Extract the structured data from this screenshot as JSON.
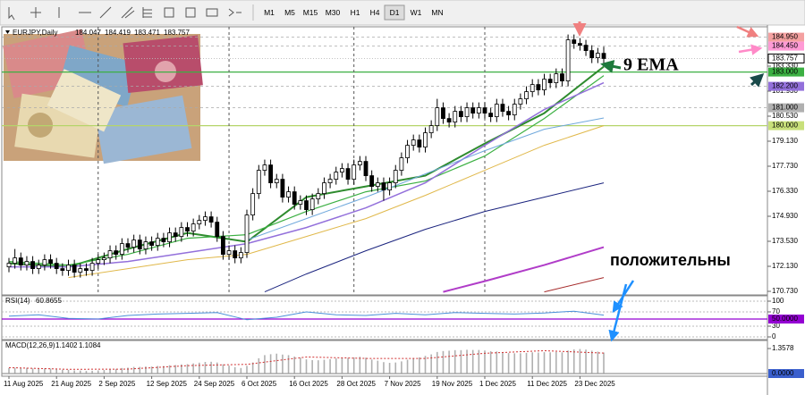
{
  "toolbar": {
    "timeframes": [
      "M1",
      "M5",
      "M15",
      "M30",
      "H1",
      "H4",
      "D1",
      "W1",
      "MN"
    ],
    "active": 6
  },
  "chart_data": [
    {
      "type": "candlestick",
      "title": "EURJPY,Daily",
      "categories": [
        "11 Aug 2025",
        null,
        null,
        null,
        null,
        null,
        null,
        null,
        "21 Aug 2025",
        null,
        null,
        null,
        null,
        null,
        null,
        null,
        "2 Sep 2025",
        null,
        null,
        null,
        null,
        null,
        null,
        null,
        "12 Sep 2025",
        null,
        null,
        null,
        null,
        null,
        null,
        null,
        "24 Sep 2025",
        null,
        null,
        null,
        null,
        null,
        null,
        null,
        "6 Oct 2025",
        null,
        null,
        null,
        null,
        null,
        null,
        null,
        "16 Oct 2025",
        null,
        null,
        null,
        null,
        null,
        null,
        null,
        "28 Oct 2025",
        null,
        null,
        null,
        null,
        null,
        null,
        null,
        "7 Nov 2025",
        null,
        null,
        null,
        null,
        null,
        null,
        null,
        "19 Nov 2025",
        null,
        null,
        null,
        null,
        null,
        null,
        null,
        "1 Dec 2025",
        null,
        null,
        null,
        null,
        null,
        null,
        null,
        "11 Dec 2025",
        null,
        null,
        null,
        null,
        null,
        null,
        null,
        "23 Dec 2025",
        null,
        null,
        null,
        null
      ],
      "open": [
        172.1,
        172.3,
        172.6,
        172.2,
        172.4,
        172.0,
        172.2,
        172.5,
        172.3,
        172.0,
        171.9,
        172.2,
        171.8,
        172.0,
        171.9,
        172.3,
        172.5,
        172.6,
        173.0,
        172.8,
        173.4,
        173.2,
        173.6,
        173.1,
        173.5,
        173.3,
        173.7,
        173.5,
        174.0,
        173.8,
        174.3,
        174.1,
        174.5,
        174.7,
        174.9,
        174.6,
        173.8,
        172.8,
        173.0,
        172.6,
        172.9,
        175.0,
        176.2,
        177.5,
        177.8,
        176.8,
        177.0,
        176.0,
        176.3,
        175.6,
        175.8,
        175.3,
        175.9,
        176.2,
        176.8,
        177.0,
        177.4,
        177.6,
        177.0,
        177.8,
        178.0,
        177.2,
        176.6,
        176.8,
        176.4,
        176.8,
        177.5,
        178.2,
        178.9,
        179.2,
        178.8,
        179.6,
        180.0,
        181.0,
        180.4,
        180.2,
        180.8,
        180.5,
        181.0,
        180.7,
        181.0,
        180.7,
        180.5,
        181.2,
        180.8,
        180.6,
        181.2,
        181.5,
        181.9,
        182.3,
        182.0,
        182.6,
        182.4,
        182.9,
        182.5,
        184.8,
        184.6,
        184.5,
        184.2,
        183.8,
        184.047
      ],
      "high": [
        172.6,
        173.1,
        172.9,
        172.7,
        172.7,
        172.5,
        172.8,
        172.8,
        172.6,
        172.3,
        172.5,
        172.5,
        172.3,
        172.3,
        172.6,
        172.8,
        172.9,
        173.3,
        173.3,
        173.7,
        173.7,
        173.9,
        173.9,
        173.8,
        173.8,
        174.0,
        174.0,
        174.3,
        174.3,
        174.6,
        174.6,
        174.8,
        175.0,
        175.2,
        175.2,
        174.9,
        174.1,
        173.3,
        173.3,
        173.2,
        175.3,
        176.5,
        177.8,
        178.1,
        178.1,
        177.3,
        177.3,
        176.6,
        176.6,
        176.1,
        176.1,
        176.2,
        176.5,
        177.1,
        177.3,
        177.7,
        177.9,
        177.9,
        178.1,
        178.3,
        178.3,
        177.5,
        177.1,
        177.1,
        177.1,
        177.8,
        178.5,
        179.2,
        179.5,
        179.5,
        179.9,
        180.3,
        181.5,
        181.3,
        180.7,
        181.1,
        181.1,
        181.3,
        181.3,
        181.3,
        181.3,
        181.0,
        181.5,
        181.5,
        181.1,
        181.5,
        181.8,
        182.2,
        182.6,
        182.6,
        182.9,
        182.9,
        183.2,
        183.2,
        185.1,
        185.1,
        184.9,
        184.8,
        184.5,
        184.35,
        184.419
      ],
      "low": [
        171.8,
        172.0,
        171.9,
        171.9,
        171.7,
        171.7,
        171.9,
        172.0,
        171.7,
        171.6,
        171.6,
        171.5,
        171.5,
        171.6,
        171.6,
        172.0,
        172.2,
        172.3,
        172.5,
        172.5,
        172.9,
        172.9,
        172.8,
        172.8,
        173.0,
        173.0,
        173.2,
        173.2,
        173.5,
        173.5,
        173.8,
        173.8,
        174.2,
        174.4,
        174.3,
        173.5,
        172.5,
        172.5,
        172.3,
        172.3,
        172.6,
        174.7,
        175.9,
        177.2,
        176.5,
        176.5,
        175.7,
        175.7,
        175.3,
        175.3,
        175.0,
        175.0,
        175.6,
        175.9,
        176.5,
        176.7,
        177.1,
        176.7,
        176.7,
        177.5,
        176.9,
        176.3,
        176.3,
        175.8,
        176.1,
        176.5,
        177.2,
        177.9,
        178.6,
        178.5,
        178.5,
        179.3,
        179.7,
        180.1,
        179.9,
        179.9,
        180.2,
        180.2,
        180.4,
        180.4,
        180.4,
        180.2,
        180.2,
        180.5,
        180.3,
        180.3,
        180.9,
        181.2,
        181.6,
        181.7,
        181.7,
        182.1,
        182.1,
        182.2,
        182.2,
        184.3,
        184.2,
        183.9,
        183.5,
        183.5,
        183.471
      ],
      "close": [
        172.3,
        172.6,
        172.2,
        172.4,
        172.0,
        172.2,
        172.5,
        172.3,
        172.0,
        171.9,
        172.2,
        171.8,
        172.0,
        171.9,
        172.3,
        172.5,
        172.6,
        173.0,
        172.8,
        173.4,
        173.2,
        173.6,
        173.1,
        173.5,
        173.3,
        173.7,
        173.5,
        174.0,
        173.8,
        174.3,
        174.1,
        174.5,
        174.7,
        174.9,
        174.6,
        173.8,
        172.8,
        173.0,
        172.6,
        172.9,
        175.0,
        176.2,
        177.5,
        177.8,
        176.8,
        177.0,
        176.0,
        176.3,
        175.6,
        175.8,
        175.3,
        175.9,
        176.2,
        176.8,
        177.0,
        177.4,
        177.6,
        177.0,
        177.8,
        178.0,
        177.2,
        176.6,
        176.8,
        176.4,
        176.8,
        177.5,
        178.2,
        178.9,
        179.2,
        178.8,
        179.6,
        180.0,
        181.0,
        180.4,
        180.2,
        180.8,
        180.5,
        181.0,
        180.7,
        181.0,
        180.7,
        180.5,
        181.2,
        180.8,
        180.6,
        181.2,
        181.5,
        181.9,
        182.3,
        182.0,
        182.6,
        182.4,
        182.9,
        182.5,
        184.8,
        184.6,
        184.5,
        184.2,
        183.8,
        184.05,
        183.757
      ],
      "up_color": "#ffffff",
      "down_color": "#000000",
      "overlays": [
        {
          "color": "#2e8b2e",
          "width": 2,
          "x": [
            0,
            10,
            20,
            30,
            40,
            50,
            60,
            70,
            80,
            90,
            100
          ],
          "values": [
            172.3,
            172.1,
            173.1,
            174.0,
            173.5,
            176.0,
            176.6,
            177.2,
            179.0,
            180.7,
            183.3
          ]
        },
        {
          "color": "#3cb043",
          "width": 1.2,
          "x": [
            0,
            10,
            20,
            30,
            40,
            50,
            60,
            70,
            80,
            90,
            100
          ],
          "values": [
            172.4,
            172.2,
            172.8,
            173.7,
            173.9,
            175.2,
            176.3,
            176.9,
            178.3,
            180.4,
            182.8
          ]
        },
        {
          "color": "#9370db",
          "width": 1.5,
          "x": [
            0,
            10,
            20,
            30,
            40,
            50,
            60,
            70,
            80,
            90,
            100
          ],
          "values": [
            172.1,
            172.1,
            172.4,
            172.9,
            173.4,
            174.3,
            175.4,
            176.8,
            178.9,
            180.9,
            182.4
          ]
        },
        {
          "color": "#6fa8dc",
          "width": 1,
          "x": [
            40,
            50,
            60,
            70,
            80,
            90,
            100
          ],
          "values": [
            173.6,
            174.8,
            176.0,
            177.3,
            178.6,
            179.8,
            180.43
          ]
        },
        {
          "color": "#e0b84a",
          "width": 1,
          "x": [
            10,
            20,
            30,
            40,
            50,
            60,
            70,
            80,
            90,
            100
          ],
          "values": [
            171.5,
            172.0,
            172.5,
            172.8,
            173.8,
            174.8,
            176.1,
            177.5,
            178.9,
            180.0
          ]
        },
        {
          "color": "#1a237e",
          "width": 1,
          "x": [
            43,
            50,
            60,
            70,
            80,
            90,
            100
          ],
          "values": [
            170.7,
            171.7,
            173.0,
            174.2,
            175.2,
            176.0,
            176.8
          ]
        },
        {
          "color": "#b03cc8",
          "width": 2,
          "x": [
            73,
            80,
            90,
            100
          ],
          "values": [
            170.7,
            171.3,
            172.2,
            173.2
          ]
        },
        {
          "color": "#a52a2a",
          "width": 1,
          "x": [
            90,
            100
          ],
          "values": [
            170.7,
            171.5
          ]
        }
      ],
      "month_separators": [
        15,
        37,
        58,
        80
      ],
      "levels": [
        {
          "value": 184.95,
          "label": "184.950",
          "color": "#f4a0a0",
          "line_color": "#aaaaaa",
          "line": "dashed"
        },
        {
          "value": 184.45,
          "label": "184.450",
          "color": "#ff9ad5",
          "line_color": "#aaaaaa",
          "line": "dashed"
        },
        {
          "value": 183.757,
          "label": "183.757",
          "color": "#ffffff",
          "line_color": "#bbbbbb",
          "line": "dotted"
        },
        {
          "value": 183.0,
          "label": "183.000",
          "color": "#3cb043",
          "line_color": "#3cb043",
          "line": "solid"
        },
        {
          "value": 182.2,
          "label": "182.200",
          "color": "#9370db",
          "line_color": "#aaaaaa",
          "line": "dashed"
        },
        {
          "value": 181.0,
          "label": "181.000",
          "color": "#b0b0b0",
          "line_color": "#aaaaaa",
          "line": "dashed"
        },
        {
          "value": 180.0,
          "label": "180.000",
          "color": "#c8e07a",
          "line_color": "#b5d56a",
          "line": "solid"
        }
      ],
      "ylim": [
        170.53,
        185.53
      ],
      "yticks": [
        {
          "value": 170.73,
          "label": "170.730"
        },
        {
          "value": 172.13,
          "label": "172.130"
        },
        {
          "value": 173.53,
          "label": "173.530"
        },
        {
          "value": 174.93,
          "label": "174.930"
        },
        {
          "value": 176.33,
          "label": "176.330"
        },
        {
          "value": 177.73,
          "label": "177.730"
        },
        {
          "value": 179.13,
          "label": "179.130"
        },
        {
          "value": 180.53,
          "label": "180.530"
        },
        {
          "value": 181.93,
          "label": "181.930"
        },
        {
          "value": 183.33,
          "label": "183.330"
        }
      ],
      "annotations": [
        {
          "text": "9 EMA",
          "color": "#2e9e5a"
        },
        {
          "text": "положительны",
          "color": "#1e90ff"
        }
      ]
    },
    {
      "type": "line",
      "title": "RSI(14)",
      "color": "#4a90d9",
      "x": [
        0,
        5,
        10,
        15,
        20,
        25,
        30,
        35,
        40,
        45,
        50,
        55,
        60,
        65,
        70,
        75,
        80,
        85,
        90,
        95,
        100
      ],
      "values": [
        58,
        62,
        52,
        50,
        60,
        64,
        66,
        68,
        48,
        55,
        70,
        62,
        60,
        66,
        62,
        68,
        66,
        64,
        67,
        72,
        60.8655
      ],
      "ylim": [
        0,
        100
      ],
      "yticks": [
        100,
        70,
        30,
        0
      ],
      "levels": [
        {
          "value": 50,
          "label": "50.0000",
          "color": "#9400d3",
          "line_color": "#9400d3",
          "line": "solid"
        }
      ]
    },
    {
      "type": "bar",
      "title": "MACD(12,26,9)",
      "color": "#b0b0b0",
      "values": [
        0.3,
        0.32,
        0.3,
        0.31,
        0.28,
        0.27,
        0.28,
        0.27,
        0.24,
        0.21,
        0.2,
        0.17,
        0.16,
        0.14,
        0.15,
        0.17,
        0.19,
        0.23,
        0.25,
        0.3,
        0.32,
        0.36,
        0.36,
        0.38,
        0.38,
        0.41,
        0.41,
        0.45,
        0.46,
        0.5,
        0.51,
        0.55,
        0.59,
        0.63,
        0.64,
        0.6,
        0.5,
        0.43,
        0.35,
        0.3,
        0.42,
        0.6,
        0.83,
        1.0,
        1.05,
        1.08,
        1.03,
        1.0,
        0.92,
        0.86,
        0.77,
        0.73,
        0.72,
        0.75,
        0.78,
        0.82,
        0.86,
        0.85,
        0.88,
        0.91,
        0.86,
        0.76,
        0.7,
        0.62,
        0.58,
        0.6,
        0.66,
        0.75,
        0.84,
        0.88,
        0.96,
        1.04,
        1.17,
        1.22,
        1.24,
        1.27,
        1.27,
        1.29,
        1.28,
        1.28,
        1.25,
        1.21,
        1.2,
        1.16,
        1.11,
        1.1,
        1.1,
        1.12,
        1.15,
        1.14,
        1.16,
        1.15,
        1.17,
        1.15,
        1.25,
        1.31,
        1.33,
        1.3,
        1.24,
        1.19,
        1.1402
      ],
      "signal": {
        "color": "#d03030",
        "x": [
          0,
          10,
          20,
          30,
          40,
          50,
          60,
          70,
          80,
          90,
          100
        ],
        "values": [
          0.32,
          0.23,
          0.24,
          0.43,
          0.5,
          0.9,
          0.82,
          0.82,
          1.1,
          1.24,
          1.1084
        ]
      },
      "ylim": [
        0,
        1.3578
      ],
      "yticks": [
        1.3578
      ],
      "levels": [
        {
          "value": 0,
          "label": "0.0000",
          "color": "#3a5fcd",
          "line_color": "#999999",
          "line": "solid"
        }
      ]
    }
  ]
}
